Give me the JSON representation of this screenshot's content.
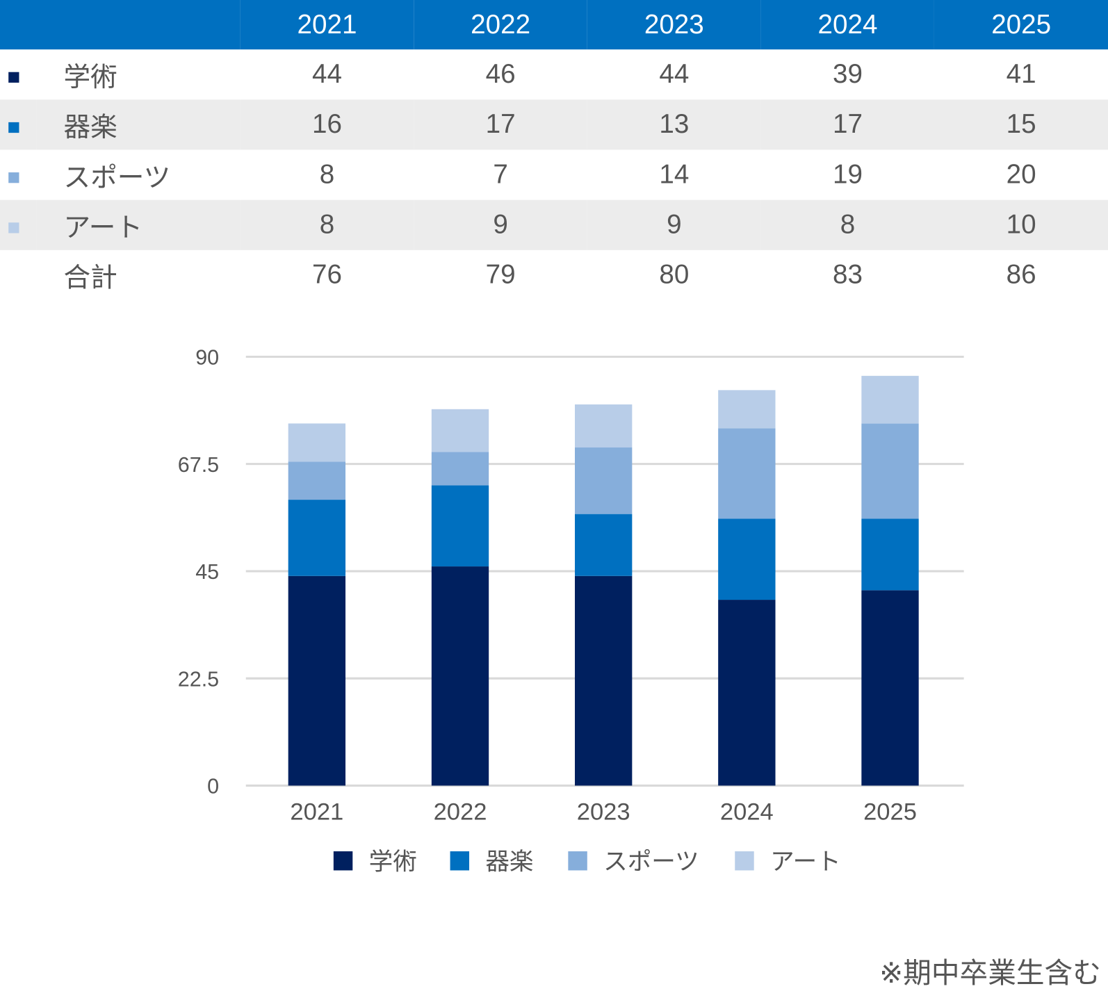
{
  "table": {
    "years": [
      "2021",
      "2022",
      "2023",
      "2024",
      "2025"
    ],
    "rows": [
      {
        "label": "学術",
        "values": [
          "44",
          "46",
          "44",
          "39",
          "41"
        ]
      },
      {
        "label": "器楽",
        "values": [
          "16",
          "17",
          "13",
          "17",
          "15"
        ]
      },
      {
        "label": "スポーツ",
        "values": [
          "8",
          "7",
          "14",
          "19",
          "20"
        ]
      },
      {
        "label": "アート",
        "values": [
          "8",
          "9",
          "9",
          "8",
          "10"
        ]
      },
      {
        "label": "合計",
        "values": [
          "76",
          "79",
          "80",
          "83",
          "86"
        ]
      }
    ]
  },
  "colors": [
    "#00205f",
    "#0070c0",
    "#86aedb",
    "#b8cde8"
  ],
  "chart_data": {
    "type": "bar",
    "stacked": true,
    "categories": [
      "2021",
      "2022",
      "2023",
      "2024",
      "2025"
    ],
    "series": [
      {
        "name": "学術",
        "values": [
          44,
          46,
          44,
          39,
          41
        ]
      },
      {
        "name": "器楽",
        "values": [
          16,
          17,
          13,
          17,
          15
        ]
      },
      {
        "name": "スポーツ",
        "values": [
          8,
          7,
          14,
          19,
          20
        ]
      },
      {
        "name": "アート",
        "values": [
          8,
          9,
          9,
          8,
          10
        ]
      }
    ],
    "ylim": [
      0,
      90
    ],
    "yticks": [
      "0",
      "22.5",
      "45",
      "67.5",
      "90"
    ],
    "grid": true,
    "legend": "bottom"
  },
  "note": "※期中卒業生含む"
}
